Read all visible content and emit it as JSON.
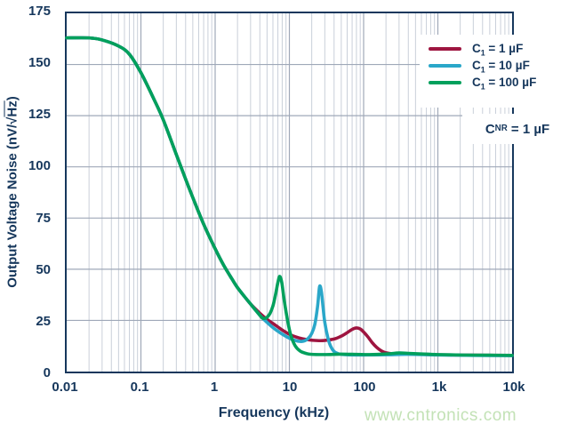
{
  "figure": {
    "watermark": "www.cntronics.com",
    "watermark_color": "#c3e2b6",
    "background": "#ffffff"
  },
  "chart_data": {
    "type": "line",
    "title": "",
    "x_axis": {
      "label": "Frequency (kHz)",
      "scale": "log",
      "min": 0.01,
      "max": 10000,
      "tick_labels": [
        "0.01",
        "0.1",
        "1",
        "10",
        "100",
        "1k",
        "10k"
      ]
    },
    "y_axis": {
      "label": "Output Voltage Noise (nV/√Hz)",
      "label_prefix": "Output Voltage Noise (nV/√",
      "label_overline": "Hz",
      "label_suffix": ")",
      "min": 0,
      "max": 175,
      "tick_step": 25,
      "tick_labels": [
        "175",
        "150",
        "125",
        "100",
        "75",
        "50",
        "25",
        "0"
      ]
    },
    "grid": {
      "major_color": "#9fa8b8",
      "minor_color": "#c9cfd9",
      "frame_color": "#16375c",
      "minor_log_divisions": true
    },
    "legend": {
      "position": "top-right",
      "text_color": "#16375c"
    },
    "annotation": {
      "prefix": "C",
      "sub": "NR",
      "rest": " = 1 µF"
    },
    "series": [
      {
        "name": "C1 = 1 uF",
        "label_prefix": "C",
        "label_sub": "1",
        "label_rest": " = 1 µF",
        "color": "#9e1540",
        "peak": {
          "freq_khz": 80,
          "value": 21.3
        },
        "points": [
          [
            0.01,
            163
          ],
          [
            0.02,
            163
          ],
          [
            0.03,
            162
          ],
          [
            0.05,
            159
          ],
          [
            0.07,
            155
          ],
          [
            0.1,
            146
          ],
          [
            0.15,
            133
          ],
          [
            0.2,
            123
          ],
          [
            0.3,
            106
          ],
          [
            0.4,
            94
          ],
          [
            0.5,
            85
          ],
          [
            0.7,
            72
          ],
          [
            1,
            60
          ],
          [
            1.3,
            52
          ],
          [
            1.7,
            45
          ],
          [
            2,
            41
          ],
          [
            2.5,
            36.5
          ],
          [
            3,
            33
          ],
          [
            4,
            28.5
          ],
          [
            5,
            25.5
          ],
          [
            6,
            23.5
          ],
          [
            7,
            21.8
          ],
          [
            8,
            20.3
          ],
          [
            10,
            18.2
          ],
          [
            12,
            17
          ],
          [
            15,
            16
          ],
          [
            20,
            15.3
          ],
          [
            25,
            15.1
          ],
          [
            30,
            15.2
          ],
          [
            40,
            15.9
          ],
          [
            50,
            17.3
          ],
          [
            60,
            19
          ],
          [
            70,
            20.6
          ],
          [
            80,
            21.3
          ],
          [
            90,
            20.8
          ],
          [
            100,
            19.3
          ],
          [
            115,
            16.8
          ],
          [
            130,
            14.2
          ],
          [
            150,
            11.8
          ],
          [
            175,
            10
          ],
          [
            200,
            9.2
          ],
          [
            250,
            8.7
          ],
          [
            300,
            8.6
          ],
          [
            400,
            8.6
          ],
          [
            600,
            8.4
          ],
          [
            1000,
            8.2
          ],
          [
            3000,
            8
          ],
          [
            10000,
            7.9
          ]
        ]
      },
      {
        "name": "C1 = 10 uF",
        "label_prefix": "C",
        "label_sub": "1",
        "label_rest": " = 10 µF",
        "color": "#2aa7c9",
        "peak": {
          "freq_khz": 25.5,
          "value": 41.5
        },
        "points": [
          [
            0.01,
            163
          ],
          [
            0.02,
            163
          ],
          [
            0.03,
            162
          ],
          [
            0.05,
            159
          ],
          [
            0.07,
            155
          ],
          [
            0.1,
            146
          ],
          [
            0.15,
            133
          ],
          [
            0.2,
            123
          ],
          [
            0.3,
            106
          ],
          [
            0.4,
            94
          ],
          [
            0.5,
            85
          ],
          [
            0.7,
            72
          ],
          [
            1,
            60
          ],
          [
            1.3,
            52
          ],
          [
            1.7,
            45
          ],
          [
            2,
            41
          ],
          [
            2.5,
            36.5
          ],
          [
            3,
            33
          ],
          [
            4,
            27.5
          ],
          [
            5,
            24
          ],
          [
            6,
            21.5
          ],
          [
            7,
            19.7
          ],
          [
            8,
            18.3
          ],
          [
            10,
            16.3
          ],
          [
            12,
            15.2
          ],
          [
            14,
            14.7
          ],
          [
            16,
            15
          ],
          [
            18,
            16.3
          ],
          [
            20,
            18.6
          ],
          [
            22,
            23
          ],
          [
            24,
            32
          ],
          [
            25.5,
            41.5
          ],
          [
            27,
            39
          ],
          [
            28.5,
            31
          ],
          [
            30,
            24
          ],
          [
            33,
            16.5
          ],
          [
            36,
            12.3
          ],
          [
            40,
            9.8
          ],
          [
            45,
            8.8
          ],
          [
            50,
            8.4
          ],
          [
            60,
            8.2
          ],
          [
            80,
            8.1
          ],
          [
            100,
            8.1
          ],
          [
            200,
            8.2
          ],
          [
            400,
            8.4
          ],
          [
            1000,
            8.1
          ],
          [
            3000,
            7.9
          ],
          [
            10000,
            7.8
          ]
        ]
      },
      {
        "name": "C1 = 100 uF",
        "label_prefix": "C",
        "label_sub": "1",
        "label_rest": " = 100 µF",
        "color": "#00a05c",
        "peak": {
          "freq_khz": 7.4,
          "value": 46.5
        },
        "points": [
          [
            0.01,
            163
          ],
          [
            0.02,
            163
          ],
          [
            0.03,
            162
          ],
          [
            0.05,
            159
          ],
          [
            0.07,
            155
          ],
          [
            0.1,
            146
          ],
          [
            0.15,
            133
          ],
          [
            0.2,
            123
          ],
          [
            0.3,
            106
          ],
          [
            0.4,
            94
          ],
          [
            0.5,
            85
          ],
          [
            0.7,
            72
          ],
          [
            1,
            60
          ],
          [
            1.3,
            52
          ],
          [
            1.7,
            45
          ],
          [
            2,
            41
          ],
          [
            2.5,
            36.5
          ],
          [
            3,
            33
          ],
          [
            3.5,
            30
          ],
          [
            4,
            27.5
          ],
          [
            4.3,
            26.2
          ],
          [
            4.7,
            26
          ],
          [
            5,
            26.5
          ],
          [
            5.5,
            28.5
          ],
          [
            6,
            32
          ],
          [
            6.5,
            37.5
          ],
          [
            7,
            43.5
          ],
          [
            7.4,
            46.5
          ],
          [
            7.9,
            43.5
          ],
          [
            8.5,
            35
          ],
          [
            9.5,
            24.5
          ],
          [
            10.5,
            17.5
          ],
          [
            12,
            12.5
          ],
          [
            14,
            10
          ],
          [
            17,
            8.8
          ],
          [
            20,
            8.4
          ],
          [
            30,
            8.3
          ],
          [
            50,
            8.5
          ],
          [
            80,
            8.4
          ],
          [
            120,
            8.3
          ],
          [
            200,
            8.6
          ],
          [
            300,
            9.1
          ],
          [
            400,
            8.9
          ],
          [
            600,
            8.6
          ],
          [
            1000,
            8.3
          ],
          [
            2000,
            8.1
          ],
          [
            5000,
            8
          ],
          [
            10000,
            7.9
          ]
        ]
      }
    ]
  }
}
